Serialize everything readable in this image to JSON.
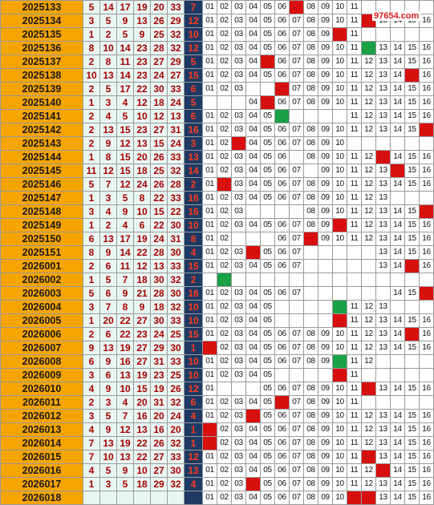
{
  "watermark": "97654.com",
  "colors": {
    "period_bg": "#f6a400",
    "red_ball_bg": "#e8f6f2",
    "red_ball_text": "#a60000",
    "blue_col_bg": "#1e3a64",
    "blue_ball_text": "#ff3a1e",
    "hit_red": "#d80f0f",
    "hit_green": "#1aa146"
  },
  "rows": [
    {
      "period": "2025133",
      "reds": [
        "5",
        "14",
        "17",
        "19",
        "20",
        "33"
      ],
      "blue": "7"
    },
    {
      "period": "2025134",
      "reds": [
        "3",
        "5",
        "9",
        "13",
        "26",
        "29"
      ],
      "blue": "12"
    },
    {
      "period": "2025135",
      "reds": [
        "1",
        "2",
        "5",
        "9",
        "25",
        "32"
      ],
      "blue": "10"
    },
    {
      "period": "2025136",
      "reds": [
        "8",
        "10",
        "14",
        "23",
        "28",
        "32"
      ],
      "blue": "12"
    },
    {
      "period": "2025137",
      "reds": [
        "2",
        "8",
        "11",
        "23",
        "27",
        "29"
      ],
      "blue": "5"
    },
    {
      "period": "2025138",
      "reds": [
        "10",
        "13",
        "14",
        "23",
        "24",
        "27"
      ],
      "blue": "15"
    },
    {
      "period": "2025139",
      "reds": [
        "2",
        "5",
        "17",
        "22",
        "30",
        "33"
      ],
      "blue": "6"
    },
    {
      "period": "2025140",
      "reds": [
        "1",
        "3",
        "4",
        "12",
        "18",
        "24"
      ],
      "blue": "5"
    },
    {
      "period": "2025141",
      "reds": [
        "2",
        "4",
        "5",
        "10",
        "12",
        "13"
      ],
      "blue": "6"
    },
    {
      "period": "2025142",
      "reds": [
        "2",
        "13",
        "15",
        "23",
        "27",
        "31"
      ],
      "blue": "16"
    },
    {
      "period": "2025143",
      "reds": [
        "2",
        "9",
        "12",
        "13",
        "15",
        "24"
      ],
      "blue": "3"
    },
    {
      "period": "2025144",
      "reds": [
        "1",
        "8",
        "15",
        "20",
        "26",
        "33"
      ],
      "blue": "13"
    },
    {
      "period": "2025145",
      "reds": [
        "11",
        "12",
        "15",
        "18",
        "25",
        "32"
      ],
      "blue": "14"
    },
    {
      "period": "2025146",
      "reds": [
        "5",
        "7",
        "12",
        "24",
        "26",
        "28"
      ],
      "blue": "2"
    },
    {
      "period": "2025147",
      "reds": [
        "1",
        "3",
        "5",
        "8",
        "22",
        "33"
      ],
      "blue": "16"
    },
    {
      "period": "2025148",
      "reds": [
        "3",
        "4",
        "9",
        "10",
        "15",
        "22"
      ],
      "blue": "16"
    },
    {
      "period": "2025149",
      "reds": [
        "1",
        "2",
        "4",
        "6",
        "22",
        "30"
      ],
      "blue": "10"
    },
    {
      "period": "2025150",
      "reds": [
        "6",
        "13",
        "17",
        "19",
        "24",
        "31"
      ],
      "blue": "8"
    },
    {
      "period": "2025151",
      "reds": [
        "8",
        "9",
        "14",
        "22",
        "28",
        "30"
      ],
      "blue": "4"
    },
    {
      "period": "2026001",
      "reds": [
        "2",
        "6",
        "11",
        "12",
        "13",
        "33"
      ],
      "blue": "15"
    },
    {
      "period": "2026002",
      "reds": [
        "1",
        "5",
        "7",
        "18",
        "30",
        "32"
      ],
      "blue": "2"
    },
    {
      "period": "2026003",
      "reds": [
        "5",
        "6",
        "9",
        "21",
        "28",
        "30"
      ],
      "blue": "16"
    },
    {
      "period": "2026004",
      "reds": [
        "3",
        "7",
        "8",
        "9",
        "18",
        "32"
      ],
      "blue": "10"
    },
    {
      "period": "2026005",
      "reds": [
        "1",
        "20",
        "22",
        "27",
        "30",
        "33"
      ],
      "blue": "10"
    },
    {
      "period": "2026006",
      "reds": [
        "2",
        "6",
        "22",
        "23",
        "24",
        "25"
      ],
      "blue": "15"
    },
    {
      "period": "2026007",
      "reds": [
        "9",
        "13",
        "19",
        "27",
        "29",
        "30"
      ],
      "blue": "1"
    },
    {
      "period": "2026008",
      "reds": [
        "6",
        "9",
        "16",
        "27",
        "31",
        "33"
      ],
      "blue": "10"
    },
    {
      "period": "2026009",
      "reds": [
        "3",
        "6",
        "13",
        "19",
        "23",
        "25"
      ],
      "blue": "10"
    },
    {
      "period": "2026010",
      "reds": [
        "4",
        "9",
        "10",
        "15",
        "19",
        "26"
      ],
      "blue": "12"
    },
    {
      "period": "2026011",
      "reds": [
        "2",
        "3",
        "4",
        "20",
        "31",
        "32"
      ],
      "blue": "6"
    },
    {
      "period": "2026012",
      "reds": [
        "3",
        "5",
        "7",
        "16",
        "20",
        "24"
      ],
      "blue": "4"
    },
    {
      "period": "2026013",
      "reds": [
        "4",
        "9",
        "12",
        "13",
        "16",
        "20"
      ],
      "blue": "1"
    },
    {
      "period": "2026014",
      "reds": [
        "7",
        "13",
        "19",
        "22",
        "26",
        "32"
      ],
      "blue": "1"
    },
    {
      "period": "2026015",
      "reds": [
        "7",
        "10",
        "13",
        "22",
        "27",
        "33"
      ],
      "blue": "12"
    },
    {
      "period": "2026016",
      "reds": [
        "4",
        "5",
        "9",
        "10",
        "27",
        "30"
      ],
      "blue": "13"
    },
    {
      "period": "2026017",
      "reds": [
        "1",
        "3",
        "5",
        "18",
        "29",
        "32"
      ],
      "blue": "4"
    },
    {
      "period": "2026018",
      "reds": [
        "",
        "",
        "",
        "",
        "",
        ""
      ],
      "blue": ""
    }
  ],
  "trend": {
    "numbers": [
      "01",
      "02",
      "03",
      "04",
      "05",
      "06",
      "07",
      "08",
      "09",
      "10",
      "11",
      "12",
      "13",
      "14",
      "15",
      "16"
    ],
    "rows": [
      {
        "hidden": [
          7,
          12,
          13,
          14,
          15,
          16
        ],
        "hits": [
          {
            "n": 7,
            "c": "red"
          }
        ]
      },
      {
        "hidden": [],
        "hits": [
          {
            "n": 12,
            "c": "red"
          }
        ]
      },
      {
        "hidden": [
          12,
          13,
          14,
          15,
          16
        ],
        "hits": [
          {
            "n": 10,
            "c": "red"
          }
        ]
      },
      {
        "hidden": [],
        "hits": [
          {
            "n": 12,
            "c": "green"
          }
        ]
      },
      {
        "hidden": [],
        "hits": [
          {
            "n": 5,
            "c": "red"
          }
        ]
      },
      {
        "hidden": [],
        "hits": [
          {
            "n": 15,
            "c": "red"
          }
        ]
      },
      {
        "hidden": [
          4,
          5
        ],
        "hits": [
          {
            "n": 6,
            "c": "red"
          }
        ]
      },
      {
        "hidden": [
          1,
          2,
          3
        ],
        "hits": [
          {
            "n": 5,
            "c": "red"
          }
        ]
      },
      {
        "hidden": [
          6,
          7,
          8,
          9,
          10
        ],
        "hits": [
          {
            "n": 6,
            "c": "green"
          }
        ]
      },
      {
        "hidden": [],
        "hits": [
          {
            "n": 16,
            "c": "red"
          }
        ]
      },
      {
        "hidden": [
          11,
          12,
          13,
          14,
          15,
          16
        ],
        "hits": [
          {
            "n": 3,
            "c": "red"
          }
        ]
      },
      {
        "hidden": [
          7
        ],
        "hits": [
          {
            "n": 13,
            "c": "red"
          }
        ]
      },
      {
        "hidden": [
          8
        ],
        "hits": [
          {
            "n": 14,
            "c": "red"
          }
        ]
      },
      {
        "hidden": [],
        "hits": [
          {
            "n": 2,
            "c": "red"
          }
        ]
      },
      {
        "hidden": [
          14,
          15,
          16
        ],
        "hits": []
      },
      {
        "hidden": [
          4,
          5,
          6,
          7
        ],
        "hits": [
          {
            "n": 16,
            "c": "red"
          }
        ]
      },
      {
        "hidden": [],
        "hits": [
          {
            "n": 10,
            "c": "red"
          }
        ]
      },
      {
        "hidden": [
          3,
          4,
          5
        ],
        "hits": [
          {
            "n": 8,
            "c": "red"
          }
        ]
      },
      {
        "hidden": [
          8,
          9,
          10,
          11,
          12
        ],
        "hits": [
          {
            "n": 4,
            "c": "red"
          }
        ]
      },
      {
        "hidden": [
          8,
          9,
          10,
          11,
          12
        ],
        "hits": [
          {
            "n": 15,
            "c": "red"
          }
        ]
      },
      {
        "hidden": [
          1,
          3,
          4,
          5,
          6,
          7,
          8,
          9,
          10,
          11,
          12,
          13,
          14,
          15,
          16
        ],
        "hits": [
          {
            "n": 2,
            "c": "green"
          }
        ]
      },
      {
        "hidden": [
          8,
          9,
          10,
          11,
          12,
          13
        ],
        "hits": [
          {
            "n": 16,
            "c": "red"
          }
        ]
      },
      {
        "hidden": [
          6,
          7,
          8,
          9,
          14,
          15,
          16
        ],
        "hits": [
          {
            "n": 10,
            "c": "green"
          }
        ]
      },
      {
        "hidden": [
          6,
          7,
          8,
          9
        ],
        "hits": [
          {
            "n": 10,
            "c": "red"
          }
        ]
      },
      {
        "hidden": [],
        "hits": [
          {
            "n": 15,
            "c": "red"
          }
        ]
      },
      {
        "hidden": [],
        "hits": [
          {
            "n": 1,
            "c": "red"
          }
        ]
      },
      {
        "hidden": [
          13,
          14,
          15,
          16
        ],
        "hits": [
          {
            "n": 10,
            "c": "green"
          }
        ]
      },
      {
        "hidden": [
          6,
          7,
          8,
          9,
          12,
          13,
          14,
          15,
          16
        ],
        "hits": [
          {
            "n": 10,
            "c": "red"
          }
        ]
      },
      {
        "hidden": [
          2,
          3,
          4
        ],
        "hits": [
          {
            "n": 12,
            "c": "red"
          }
        ]
      },
      {
        "hidden": [
          12,
          13,
          14,
          15,
          16
        ],
        "hits": [
          {
            "n": 6,
            "c": "red"
          }
        ]
      },
      {
        "hidden": [],
        "hits": [
          {
            "n": 4,
            "c": "red"
          }
        ]
      },
      {
        "hidden": [],
        "hits": [
          {
            "n": 1,
            "c": "red"
          }
        ]
      },
      {
        "hidden": [],
        "hits": [
          {
            "n": 1,
            "c": "red"
          }
        ]
      },
      {
        "hidden": [],
        "hits": [
          {
            "n": 12,
            "c": "red"
          }
        ]
      },
      {
        "hidden": [],
        "hits": [
          {
            "n": 13,
            "c": "red"
          }
        ]
      },
      {
        "hidden": [],
        "hits": [
          {
            "n": 4,
            "c": "red"
          }
        ]
      },
      {
        "hidden": [],
        "hits": [
          {
            "n": 11,
            "c": "red"
          },
          {
            "n": 12,
            "c": "red"
          }
        ]
      }
    ]
  }
}
